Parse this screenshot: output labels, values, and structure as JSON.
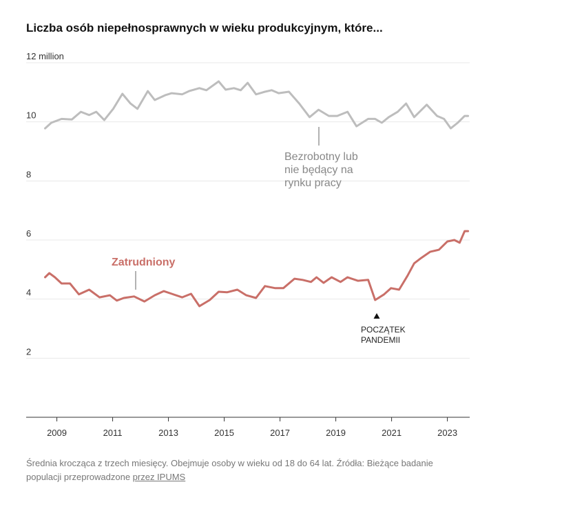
{
  "chart_data": {
    "type": "line",
    "title": "Liczba osób niepełnosprawnych w wieku produkcyjnym, które...",
    "xlim": [
      2007.9,
      2023.8
    ],
    "xticks": [
      2009,
      2011,
      2013,
      2015,
      2017,
      2019,
      2021,
      2023
    ],
    "ylim": [
      0,
      12
    ],
    "yticks": [
      2,
      4,
      6,
      8,
      10,
      {
        "value": 12,
        "label": "12 million"
      }
    ],
    "grid": true,
    "series": [
      {
        "name": "Bezrobotny lub nie będący na rynku pracy",
        "color": "#bdbdbd",
        "x": [
          2008.58,
          2008.8,
          2009.17,
          2009.54,
          2009.86,
          2010.16,
          2010.41,
          2010.7,
          2011.02,
          2011.35,
          2011.64,
          2011.89,
          2012.26,
          2012.51,
          2012.88,
          2013.12,
          2013.49,
          2013.74,
          2014.11,
          2014.36,
          2014.8,
          2015.05,
          2015.35,
          2015.59,
          2015.84,
          2016.14,
          2016.46,
          2016.7,
          2016.95,
          2017.32,
          2017.69,
          2018.06,
          2018.38,
          2018.75,
          2019.05,
          2019.42,
          2019.74,
          2020.16,
          2020.41,
          2020.65,
          2020.9,
          2021.22,
          2021.52,
          2021.81,
          2022.26,
          2022.63,
          2022.88,
          2023.12,
          2023.37,
          2023.62,
          2023.74
        ],
        "values": [
          9.78,
          9.97,
          10.1,
          10.08,
          10.34,
          10.23,
          10.34,
          10.06,
          10.44,
          10.95,
          10.62,
          10.44,
          11.04,
          10.74,
          10.9,
          10.97,
          10.93,
          11.04,
          11.14,
          11.07,
          11.37,
          11.09,
          11.14,
          11.07,
          11.32,
          10.93,
          11.02,
          11.07,
          10.97,
          11.02,
          10.62,
          10.16,
          10.41,
          10.2,
          10.2,
          10.34,
          9.85,
          10.1,
          10.1,
          9.97,
          10.16,
          10.34,
          10.62,
          10.16,
          10.58,
          10.2,
          10.1,
          9.78,
          9.97,
          10.2,
          10.2
        ]
      },
      {
        "name": "Zatrudniony",
        "color": "#c96f68",
        "x": [
          2008.58,
          2008.73,
          2008.93,
          2009.17,
          2009.47,
          2009.79,
          2010.16,
          2010.53,
          2010.9,
          2011.15,
          2011.4,
          2011.77,
          2012.14,
          2012.51,
          2012.83,
          2013.12,
          2013.49,
          2013.81,
          2014.11,
          2014.48,
          2014.8,
          2015.1,
          2015.47,
          2015.79,
          2016.14,
          2016.46,
          2016.83,
          2017.12,
          2017.52,
          2017.81,
          2018.11,
          2018.31,
          2018.56,
          2018.85,
          2019.17,
          2019.42,
          2019.79,
          2020.16,
          2020.41,
          2020.73,
          2020.98,
          2021.27,
          2021.57,
          2021.81,
          2022.06,
          2022.38,
          2022.7,
          2023.0,
          2023.25,
          2023.44,
          2023.62,
          2023.74
        ],
        "values": [
          4.74,
          4.88,
          4.74,
          4.53,
          4.53,
          4.16,
          4.32,
          4.06,
          4.13,
          3.95,
          4.04,
          4.09,
          3.92,
          4.13,
          4.27,
          4.18,
          4.06,
          4.18,
          3.76,
          3.97,
          4.25,
          4.23,
          4.32,
          4.13,
          4.04,
          4.44,
          4.37,
          4.37,
          4.69,
          4.65,
          4.58,
          4.74,
          4.55,
          4.74,
          4.58,
          4.74,
          4.62,
          4.65,
          3.97,
          4.16,
          4.37,
          4.32,
          4.79,
          5.21,
          5.39,
          5.6,
          5.67,
          5.95,
          6.0,
          5.91,
          6.3,
          6.3
        ]
      }
    ],
    "annotations": [
      {
        "lines": [
          "POCZĄTEK",
          "PANDEMII"
        ]
      }
    ],
    "note": {
      "text": "Średnia krocząca z trzech miesięcy. Obejmuje osoby w wieku od 18 do 64 lat. Źródła: Bieżące badanie populacji przeprowadzone ",
      "link": "przez IPUMS"
    }
  }
}
